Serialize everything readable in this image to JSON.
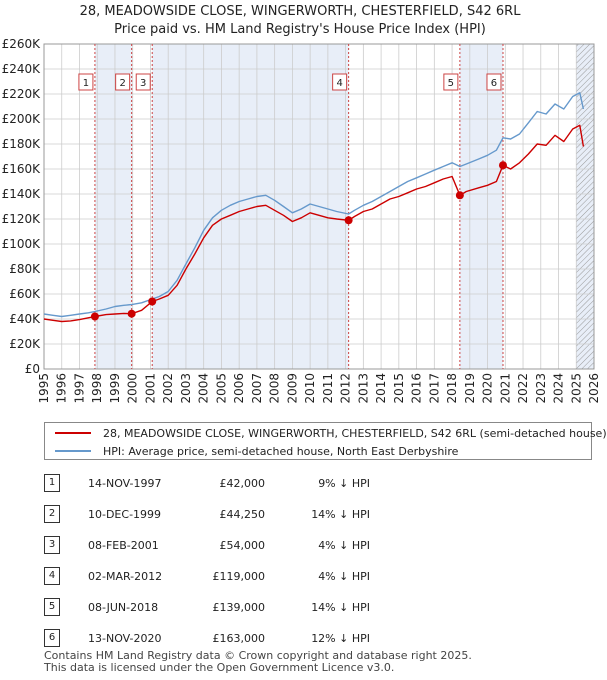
{
  "title": {
    "line1": "28, MEADOWSIDE CLOSE, WINGERWORTH, CHESTERFIELD, S42 6RL",
    "line2": "Price paid vs. HM Land Registry's House Price Index (HPI)"
  },
  "colors": {
    "price_line": "#cc0000",
    "hpi_line": "#6699cc",
    "shade": "#e8eef8",
    "marker": "#cc0000",
    "vline": "#cc4444",
    "grid": "#cccccc",
    "hatch": "#999999"
  },
  "chart_data": {
    "type": "line",
    "xlim": [
      1995,
      2026
    ],
    "ylim": [
      0,
      260000
    ],
    "x_ticks": [
      "1995",
      "1996",
      "1997",
      "1998",
      "1999",
      "2000",
      "2001",
      "2002",
      "2003",
      "2004",
      "2005",
      "2006",
      "2007",
      "2008",
      "2009",
      "2010",
      "2011",
      "2012",
      "2013",
      "2014",
      "2015",
      "2016",
      "2017",
      "2018",
      "2019",
      "2020",
      "2021",
      "2022",
      "2023",
      "2024",
      "2025",
      "2026"
    ],
    "y_ticks": [
      {
        "value": 0,
        "label": "£0"
      },
      {
        "value": 20000,
        "label": "£20K"
      },
      {
        "value": 40000,
        "label": "£40K"
      },
      {
        "value": 60000,
        "label": "£60K"
      },
      {
        "value": 80000,
        "label": "£80K"
      },
      {
        "value": 100000,
        "label": "£100K"
      },
      {
        "value": 120000,
        "label": "£120K"
      },
      {
        "value": 140000,
        "label": "£140K"
      },
      {
        "value": 160000,
        "label": "£160K"
      },
      {
        "value": 180000,
        "label": "£180K"
      },
      {
        "value": 200000,
        "label": "£200K"
      },
      {
        "value": 220000,
        "label": "£220K"
      },
      {
        "value": 240000,
        "label": "£240K"
      },
      {
        "value": 260000,
        "label": "£260K"
      }
    ],
    "shaded_ranges": [
      [
        1997.87,
        1999.94
      ],
      [
        2001.1,
        2012.17
      ],
      [
        2018.44,
        2020.87
      ],
      [
        2025.0,
        2026.0
      ]
    ],
    "hatched_range": [
      2025.0,
      2026.0
    ],
    "series": [
      {
        "name": "28, MEADOWSIDE CLOSE, WINGERWORTH, CHESTERFIELD, S42 6RL (semi-detached house)",
        "x": [
          1995.0,
          1995.5,
          1996.0,
          1996.5,
          1997.0,
          1997.5,
          1997.87,
          1998.5,
          1999.0,
          1999.5,
          1999.94,
          2000.5,
          2001.1,
          2001.5,
          2002.0,
          2002.5,
          2003.0,
          2003.5,
          2004.0,
          2004.5,
          2005.0,
          2005.5,
          2006.0,
          2006.5,
          2007.0,
          2007.5,
          2008.0,
          2008.5,
          2009.0,
          2009.5,
          2010.0,
          2010.5,
          2011.0,
          2011.5,
          2012.17,
          2012.5,
          2013.0,
          2013.5,
          2014.0,
          2014.5,
          2015.0,
          2015.5,
          2016.0,
          2016.5,
          2017.0,
          2017.5,
          2018.0,
          2018.44,
          2018.8,
          2019.5,
          2020.0,
          2020.5,
          2020.87,
          2021.3,
          2021.8,
          2022.3,
          2022.8,
          2023.3,
          2023.8,
          2024.3,
          2024.8,
          2025.2,
          2025.4
        ],
        "y": [
          40000,
          39000,
          38000,
          38500,
          39500,
          41000,
          42000,
          43500,
          44000,
          44500,
          44250,
          47000,
          54000,
          56000,
          59000,
          67000,
          80000,
          92000,
          105000,
          115000,
          120000,
          123000,
          126000,
          128000,
          130000,
          131000,
          127000,
          123000,
          118000,
          121000,
          125000,
          123000,
          121000,
          120000,
          119000,
          122000,
          126000,
          128000,
          132000,
          136000,
          138000,
          141000,
          144000,
          146000,
          149000,
          152000,
          154000,
          139000,
          142000,
          145000,
          147000,
          150000,
          163000,
          160000,
          165000,
          172000,
          180000,
          179000,
          187000,
          182000,
          192000,
          195000,
          178000
        ]
      },
      {
        "name": "HPI: Average price, semi-detached house, North East Derbyshire",
        "x": [
          1995.0,
          1995.5,
          1996.0,
          1996.5,
          1997.0,
          1997.5,
          1997.87,
          1998.5,
          1999.0,
          1999.5,
          1999.94,
          2000.5,
          2001.1,
          2001.5,
          2002.0,
          2002.5,
          2003.0,
          2003.5,
          2004.0,
          2004.5,
          2005.0,
          2005.5,
          2006.0,
          2006.5,
          2007.0,
          2007.5,
          2008.0,
          2008.5,
          2009.0,
          2009.5,
          2010.0,
          2010.5,
          2011.0,
          2011.5,
          2012.17,
          2012.5,
          2013.0,
          2013.5,
          2014.0,
          2014.5,
          2015.0,
          2015.5,
          2016.0,
          2016.5,
          2017.0,
          2017.5,
          2018.0,
          2018.44,
          2018.8,
          2019.5,
          2020.0,
          2020.5,
          2020.87,
          2021.3,
          2021.8,
          2022.3,
          2022.8,
          2023.3,
          2023.8,
          2024.3,
          2024.8,
          2025.2,
          2025.4
        ],
        "y": [
          44000,
          43000,
          42000,
          43000,
          44000,
          45000,
          46000,
          48000,
          50000,
          51000,
          51500,
          53000,
          56000,
          58000,
          62000,
          71000,
          84000,
          97000,
          111000,
          121000,
          127000,
          131000,
          134000,
          136000,
          138000,
          139000,
          135000,
          130000,
          125000,
          128000,
          132000,
          130000,
          128000,
          126000,
          124000,
          127000,
          131000,
          134000,
          138000,
          142000,
          146000,
          150000,
          153000,
          156000,
          159000,
          162000,
          165000,
          162000,
          164000,
          168000,
          171000,
          175000,
          185000,
          184000,
          188000,
          197000,
          206000,
          204000,
          212000,
          208000,
          218000,
          221000,
          208000
        ]
      }
    ],
    "sales": [
      {
        "label": "1",
        "x": 1997.87,
        "y": 42000
      },
      {
        "label": "2",
        "x": 1999.94,
        "y": 44250
      },
      {
        "label": "3",
        "x": 2001.1,
        "y": 54000
      },
      {
        "label": "4",
        "x": 2012.17,
        "y": 119000
      },
      {
        "label": "5",
        "x": 2018.44,
        "y": 139000
      },
      {
        "label": "6",
        "x": 2020.87,
        "y": 163000
      }
    ]
  },
  "legend": {
    "price_label": "28, MEADOWSIDE CLOSE, WINGERWORTH, CHESTERFIELD, S42 6RL (semi-detached house)",
    "hpi_label": "HPI: Average price, semi-detached house, North East Derbyshire"
  },
  "transactions": [
    {
      "num": "1",
      "date": "14-NOV-1997",
      "price": "£42,000",
      "delta": "9% ↓ HPI"
    },
    {
      "num": "2",
      "date": "10-DEC-1999",
      "price": "£44,250",
      "delta": "14% ↓ HPI"
    },
    {
      "num": "3",
      "date": "08-FEB-2001",
      "price": "£54,000",
      "delta": "4% ↓ HPI"
    },
    {
      "num": "4",
      "date": "02-MAR-2012",
      "price": "£119,000",
      "delta": "4% ↓ HPI"
    },
    {
      "num": "5",
      "date": "08-JUN-2018",
      "price": "£139,000",
      "delta": "14% ↓ HPI"
    },
    {
      "num": "6",
      "date": "13-NOV-2020",
      "price": "£163,000",
      "delta": "12% ↓ HPI"
    }
  ],
  "footer": {
    "line1": "Contains HM Land Registry data © Crown copyright and database right 2025.",
    "line2": "This data is licensed under the Open Government Licence v3.0."
  }
}
